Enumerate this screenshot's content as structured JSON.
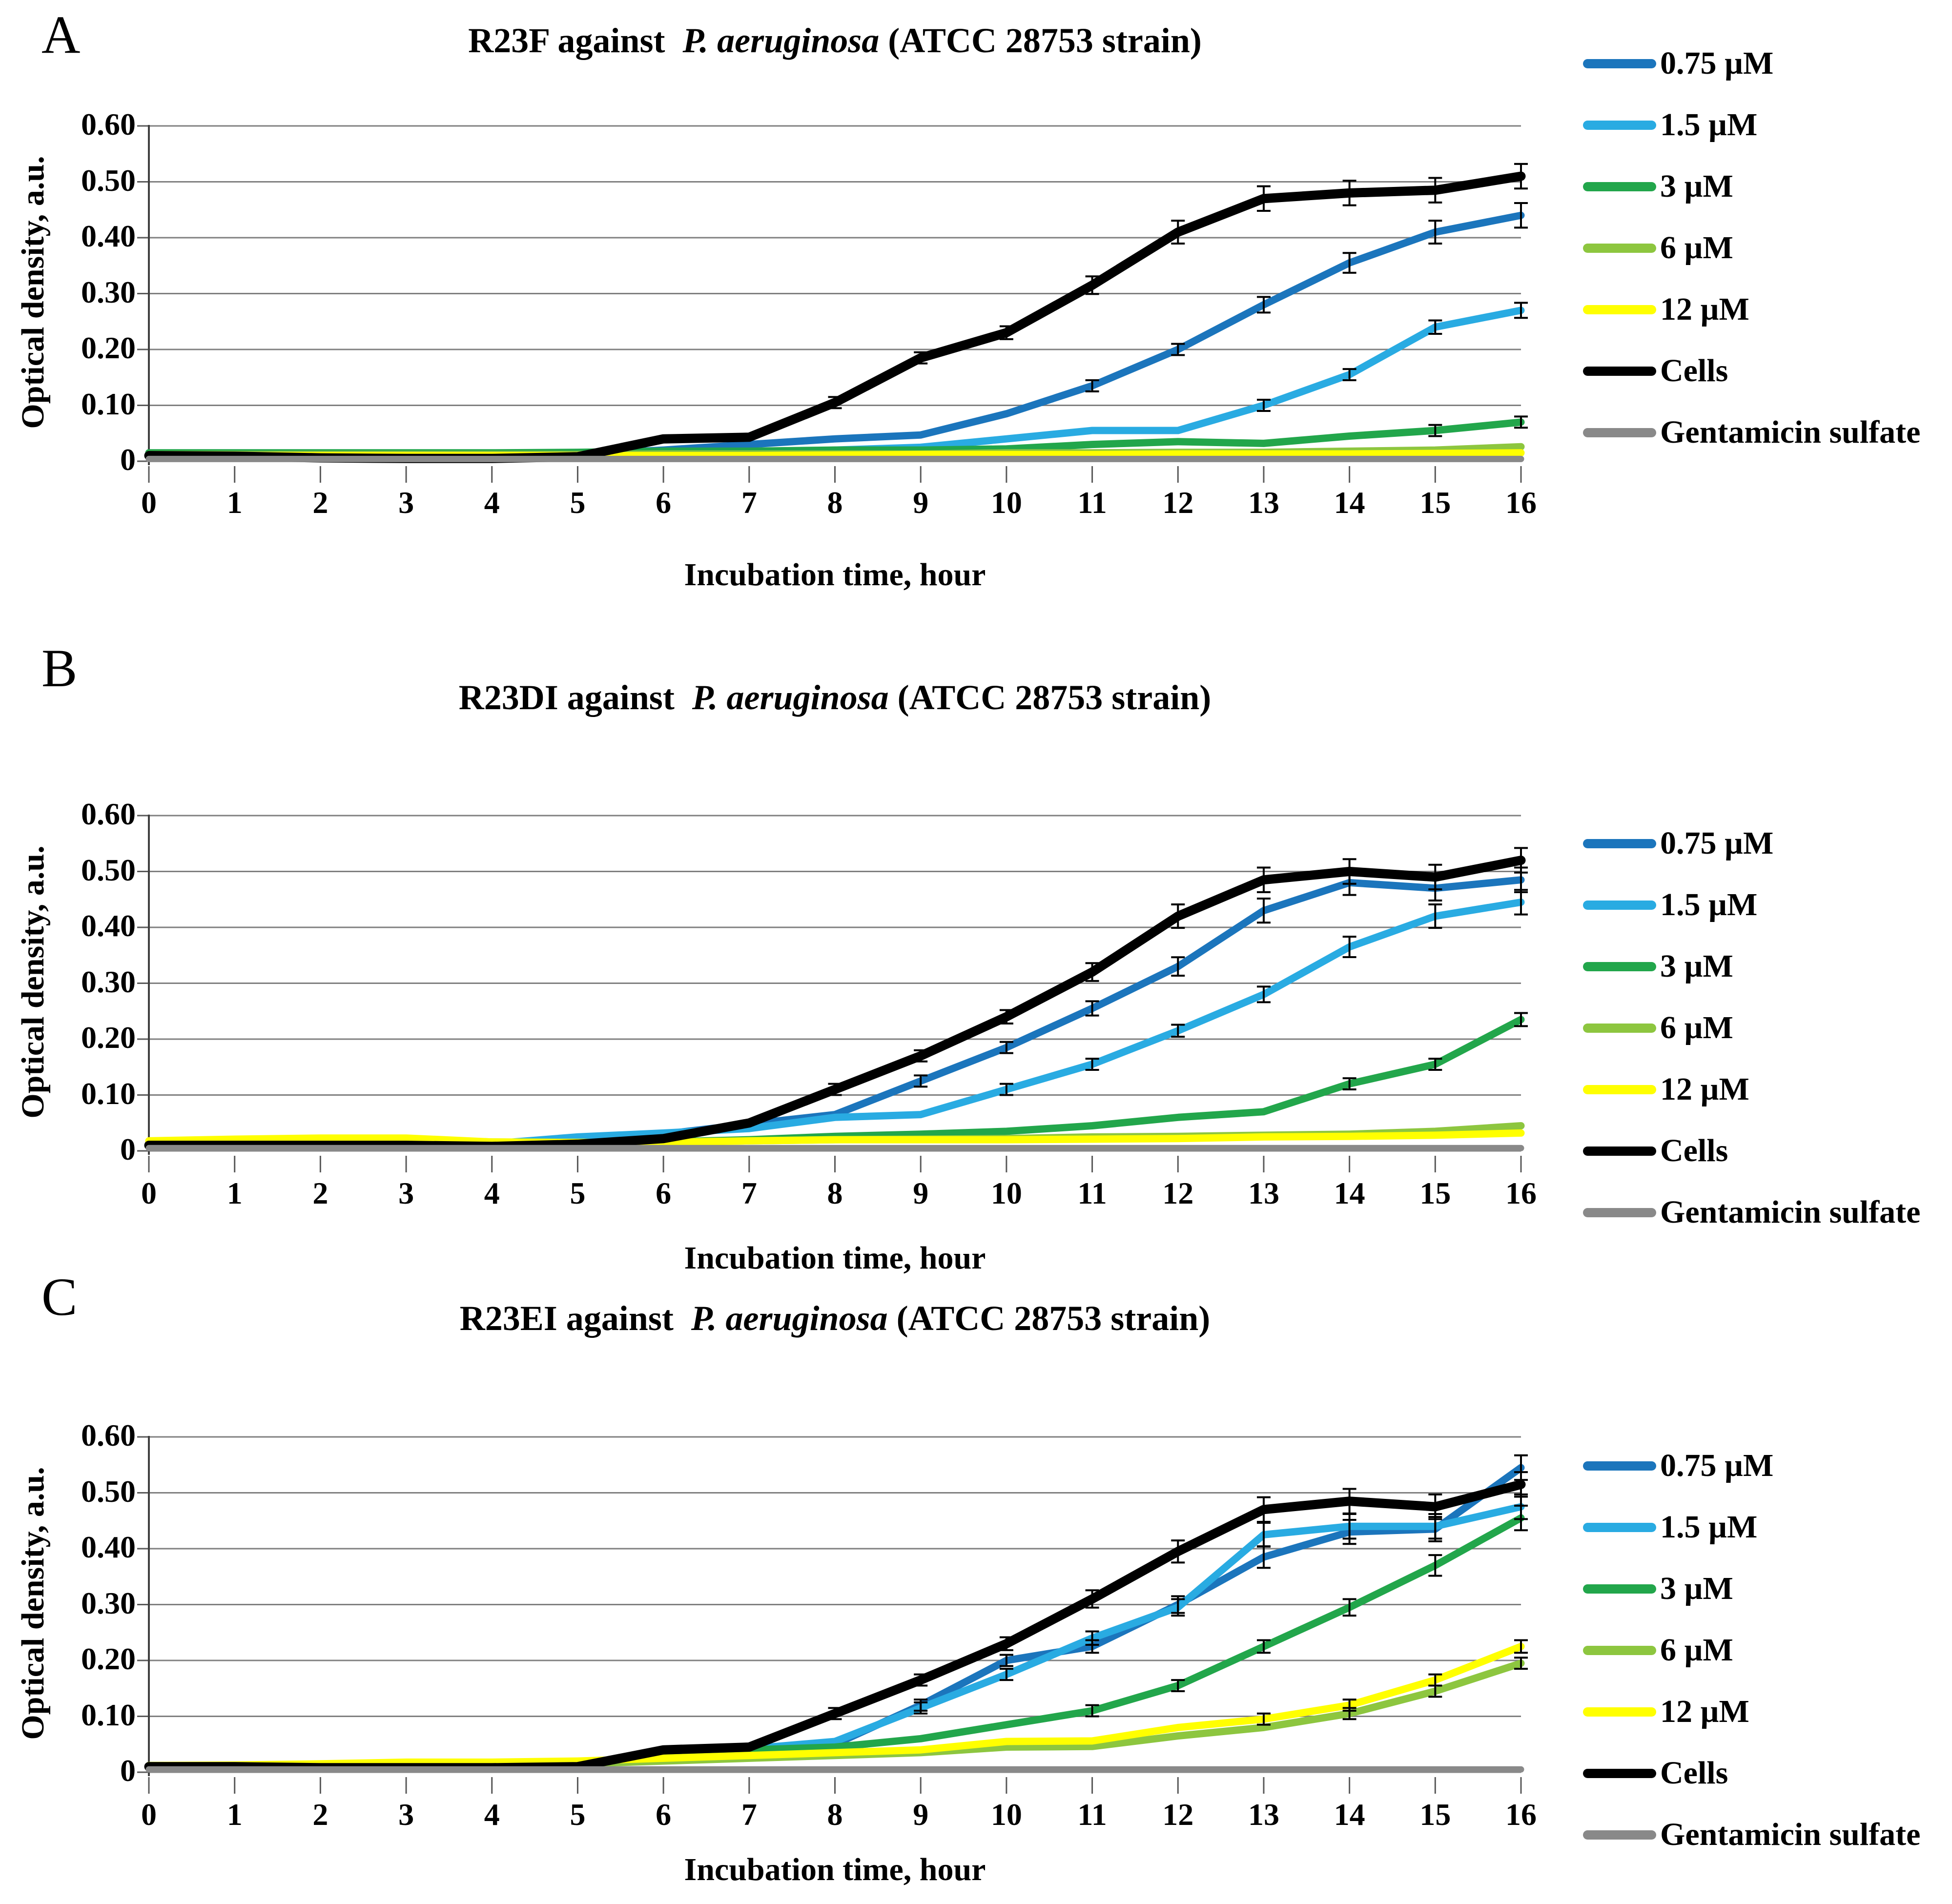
{
  "y_axis_label": "Optical density, a.u.",
  "x_axis_label": "Incubation time, hour",
  "y_ticks": [
    "0.60",
    "0.50",
    "0.40",
    "0.30",
    "0.20",
    "0.10",
    "0"
  ],
  "x_ticks": [
    "0",
    "1",
    "2",
    "3",
    "4",
    "5",
    "6",
    "7",
    "8",
    "9",
    "10",
    "11",
    "12",
    "13",
    "14",
    "15",
    "16"
  ],
  "legend": [
    {
      "label": "0.75 µM",
      "color": "#1B75BC"
    },
    {
      "label": "1.5 µM",
      "color": "#29ABE2"
    },
    {
      "label": "3 µM",
      "color": "#22A64B"
    },
    {
      "label": "6 µM",
      "color": "#8DC63F"
    },
    {
      "label": "12 µM",
      "color": "#FFFF00"
    },
    {
      "label": "Cells",
      "color": "#000000"
    },
    {
      "label": "Gentamicin sulfate",
      "color": "#898989"
    }
  ],
  "chart_data": [
    {
      "type": "line",
      "panel_letter": "A",
      "title": "R23F against P. aeruginosa (ATCC 28753 strain)",
      "title_parts": {
        "prefix": "R23F against  ",
        "species": "P. aeruginosa",
        "suffix": " (ATCC 28753 strain)"
      },
      "xlabel": "Incubation time, hour",
      "ylabel": "Optical density, a.u.",
      "x": [
        0,
        1,
        2,
        3,
        4,
        5,
        6,
        7,
        8,
        9,
        10,
        11,
        12,
        13,
        14,
        15,
        16
      ],
      "ylim": [
        0,
        0.6
      ],
      "grid": true,
      "legend_position": "right",
      "series": [
        {
          "name": "0.75 µM",
          "color": "#1B75BC",
          "values": [
            0.012,
            0.012,
            0.012,
            0.012,
            0.012,
            0.012,
            0.02,
            0.03,
            0.04,
            0.047,
            0.085,
            0.135,
            0.2,
            0.28,
            0.355,
            0.41,
            0.44
          ]
        },
        {
          "name": "1.5 µM",
          "color": "#29ABE2",
          "values": [
            0.012,
            0.012,
            0.012,
            0.012,
            0.012,
            0.012,
            0.015,
            0.015,
            0.02,
            0.025,
            0.04,
            0.055,
            0.055,
            0.1,
            0.155,
            0.24,
            0.27
          ]
        },
        {
          "name": "3 µM",
          "color": "#22A64B",
          "values": [
            0.015,
            0.015,
            0.015,
            0.015,
            0.015,
            0.016,
            0.018,
            0.018,
            0.02,
            0.02,
            0.022,
            0.03,
            0.035,
            0.032,
            0.045,
            0.055,
            0.07
          ]
        },
        {
          "name": "6 µM",
          "color": "#8DC63F",
          "values": [
            0.012,
            0.012,
            0.012,
            0.012,
            0.012,
            0.012,
            0.013,
            0.013,
            0.013,
            0.013,
            0.015,
            0.015,
            0.016,
            0.016,
            0.018,
            0.02,
            0.026
          ]
        },
        {
          "name": "12 µM",
          "color": "#FFFF00",
          "values": [
            0.01,
            0.01,
            0.01,
            0.01,
            0.01,
            0.01,
            0.01,
            0.01,
            0.011,
            0.012,
            0.012,
            0.012,
            0.013,
            0.013,
            0.013,
            0.014,
            0.015
          ]
        },
        {
          "name": "Cells",
          "color": "#000000",
          "values": [
            0.01,
            0.009,
            0.006,
            0.005,
            0.005,
            0.008,
            0.04,
            0.043,
            0.105,
            0.185,
            0.23,
            0.315,
            0.41,
            0.47,
            0.48,
            0.485,
            0.51
          ]
        },
        {
          "name": "Gentamicin sulfate",
          "color": "#898989",
          "values": [
            0.004,
            0.004,
            0.004,
            0.004,
            0.004,
            0.004,
            0.004,
            0.004,
            0.004,
            0.004,
            0.004,
            0.004,
            0.004,
            0.004,
            0.004,
            0.004,
            0.004
          ]
        }
      ]
    },
    {
      "type": "line",
      "panel_letter": "B",
      "title": "R23DI against P. aeruginosa (ATCC 28753 strain)",
      "title_parts": {
        "prefix": "R23DI against  ",
        "species": "P. aeruginosa",
        "suffix": " (ATCC 28753 strain)"
      },
      "xlabel": "Incubation time, hour",
      "ylabel": "Optical density, a.u.",
      "x": [
        0,
        1,
        2,
        3,
        4,
        5,
        6,
        7,
        8,
        9,
        10,
        11,
        12,
        13,
        14,
        15,
        16
      ],
      "ylim": [
        0,
        0.6
      ],
      "grid": true,
      "legend_position": "right",
      "series": [
        {
          "name": "0.75 µM",
          "color": "#1B75BC",
          "values": [
            0.015,
            0.015,
            0.015,
            0.015,
            0.013,
            0.02,
            0.03,
            0.048,
            0.065,
            0.125,
            0.185,
            0.255,
            0.33,
            0.43,
            0.48,
            0.47,
            0.485
          ]
        },
        {
          "name": "1.5 µM",
          "color": "#29ABE2",
          "values": [
            0.015,
            0.016,
            0.016,
            0.016,
            0.013,
            0.025,
            0.032,
            0.04,
            0.06,
            0.065,
            0.11,
            0.155,
            0.215,
            0.28,
            0.365,
            0.42,
            0.445
          ]
        },
        {
          "name": "3 µM",
          "color": "#22A64B",
          "values": [
            0.013,
            0.015,
            0.016,
            0.018,
            0.013,
            0.013,
            0.016,
            0.02,
            0.026,
            0.03,
            0.035,
            0.045,
            0.06,
            0.07,
            0.12,
            0.155,
            0.235
          ]
        },
        {
          "name": "6 µM",
          "color": "#8DC63F",
          "values": [
            0.016,
            0.018,
            0.02,
            0.021,
            0.016,
            0.015,
            0.016,
            0.018,
            0.02,
            0.021,
            0.022,
            0.025,
            0.026,
            0.028,
            0.03,
            0.035,
            0.045
          ]
        },
        {
          "name": "12 µM",
          "color": "#FFFF00",
          "values": [
            0.018,
            0.021,
            0.023,
            0.023,
            0.016,
            0.015,
            0.015,
            0.018,
            0.02,
            0.02,
            0.02,
            0.021,
            0.022,
            0.025,
            0.026,
            0.028,
            0.032
          ]
        },
        {
          "name": "Cells",
          "color": "#000000",
          "values": [
            0.01,
            0.01,
            0.01,
            0.01,
            0.008,
            0.012,
            0.022,
            0.05,
            0.11,
            0.17,
            0.24,
            0.32,
            0.42,
            0.485,
            0.5,
            0.49,
            0.52
          ]
        },
        {
          "name": "Gentamicin sulfate",
          "color": "#898989",
          "values": [
            0.005,
            0.005,
            0.005,
            0.005,
            0.005,
            0.005,
            0.005,
            0.005,
            0.005,
            0.005,
            0.005,
            0.005,
            0.005,
            0.005,
            0.005,
            0.005,
            0.005
          ]
        }
      ]
    },
    {
      "type": "line",
      "panel_letter": "C",
      "title": "R23EI against P. aeruginosa (ATCC 28753 strain)",
      "title_parts": {
        "prefix": "R23EI against  ",
        "species": "P. aeruginosa",
        "suffix": " (ATCC 28753 strain)"
      },
      "xlabel": "Incubation time, hour",
      "ylabel": "Optical density, a.u.",
      "x": [
        0,
        1,
        2,
        3,
        4,
        5,
        6,
        7,
        8,
        9,
        10,
        11,
        12,
        13,
        14,
        15,
        16
      ],
      "ylim": [
        0,
        0.6
      ],
      "grid": true,
      "legend_position": "right",
      "series": [
        {
          "name": "0.75 µM",
          "color": "#1B75BC",
          "values": [
            0.01,
            0.01,
            0.01,
            0.01,
            0.01,
            0.01,
            0.03,
            0.04,
            0.05,
            0.12,
            0.2,
            0.225,
            0.3,
            0.385,
            0.43,
            0.435,
            0.545
          ]
        },
        {
          "name": "1.5 µM",
          "color": "#29ABE2",
          "values": [
            0.01,
            0.01,
            0.01,
            0.01,
            0.01,
            0.006,
            0.032,
            0.042,
            0.055,
            0.115,
            0.175,
            0.24,
            0.295,
            0.425,
            0.44,
            0.44,
            0.475
          ]
        },
        {
          "name": "3 µM",
          "color": "#22A64B",
          "values": [
            0.012,
            0.012,
            0.012,
            0.012,
            0.012,
            0.013,
            0.035,
            0.04,
            0.045,
            0.06,
            0.085,
            0.11,
            0.155,
            0.225,
            0.295,
            0.37,
            0.455
          ]
        },
        {
          "name": "6 µM",
          "color": "#8DC63F",
          "values": [
            0.01,
            0.01,
            0.011,
            0.012,
            0.012,
            0.015,
            0.02,
            0.025,
            0.03,
            0.035,
            0.045,
            0.046,
            0.065,
            0.08,
            0.105,
            0.145,
            0.195
          ]
        },
        {
          "name": "12 µM",
          "color": "#FFFF00",
          "values": [
            0.012,
            0.013,
            0.015,
            0.018,
            0.018,
            0.02,
            0.025,
            0.03,
            0.035,
            0.04,
            0.055,
            0.056,
            0.08,
            0.095,
            0.12,
            0.165,
            0.225
          ]
        },
        {
          "name": "Cells",
          "color": "#000000",
          "values": [
            0.01,
            0.01,
            0.008,
            0.008,
            0.008,
            0.01,
            0.04,
            0.045,
            0.105,
            0.165,
            0.23,
            0.31,
            0.395,
            0.47,
            0.485,
            0.475,
            0.515
          ]
        },
        {
          "name": "Gentamicin sulfate",
          "color": "#898989",
          "values": [
            0.005,
            0.005,
            0.005,
            0.005,
            0.005,
            0.005,
            0.005,
            0.005,
            0.005,
            0.005,
            0.005,
            0.005,
            0.005,
            0.005,
            0.005,
            0.005,
            0.005
          ]
        }
      ]
    }
  ]
}
